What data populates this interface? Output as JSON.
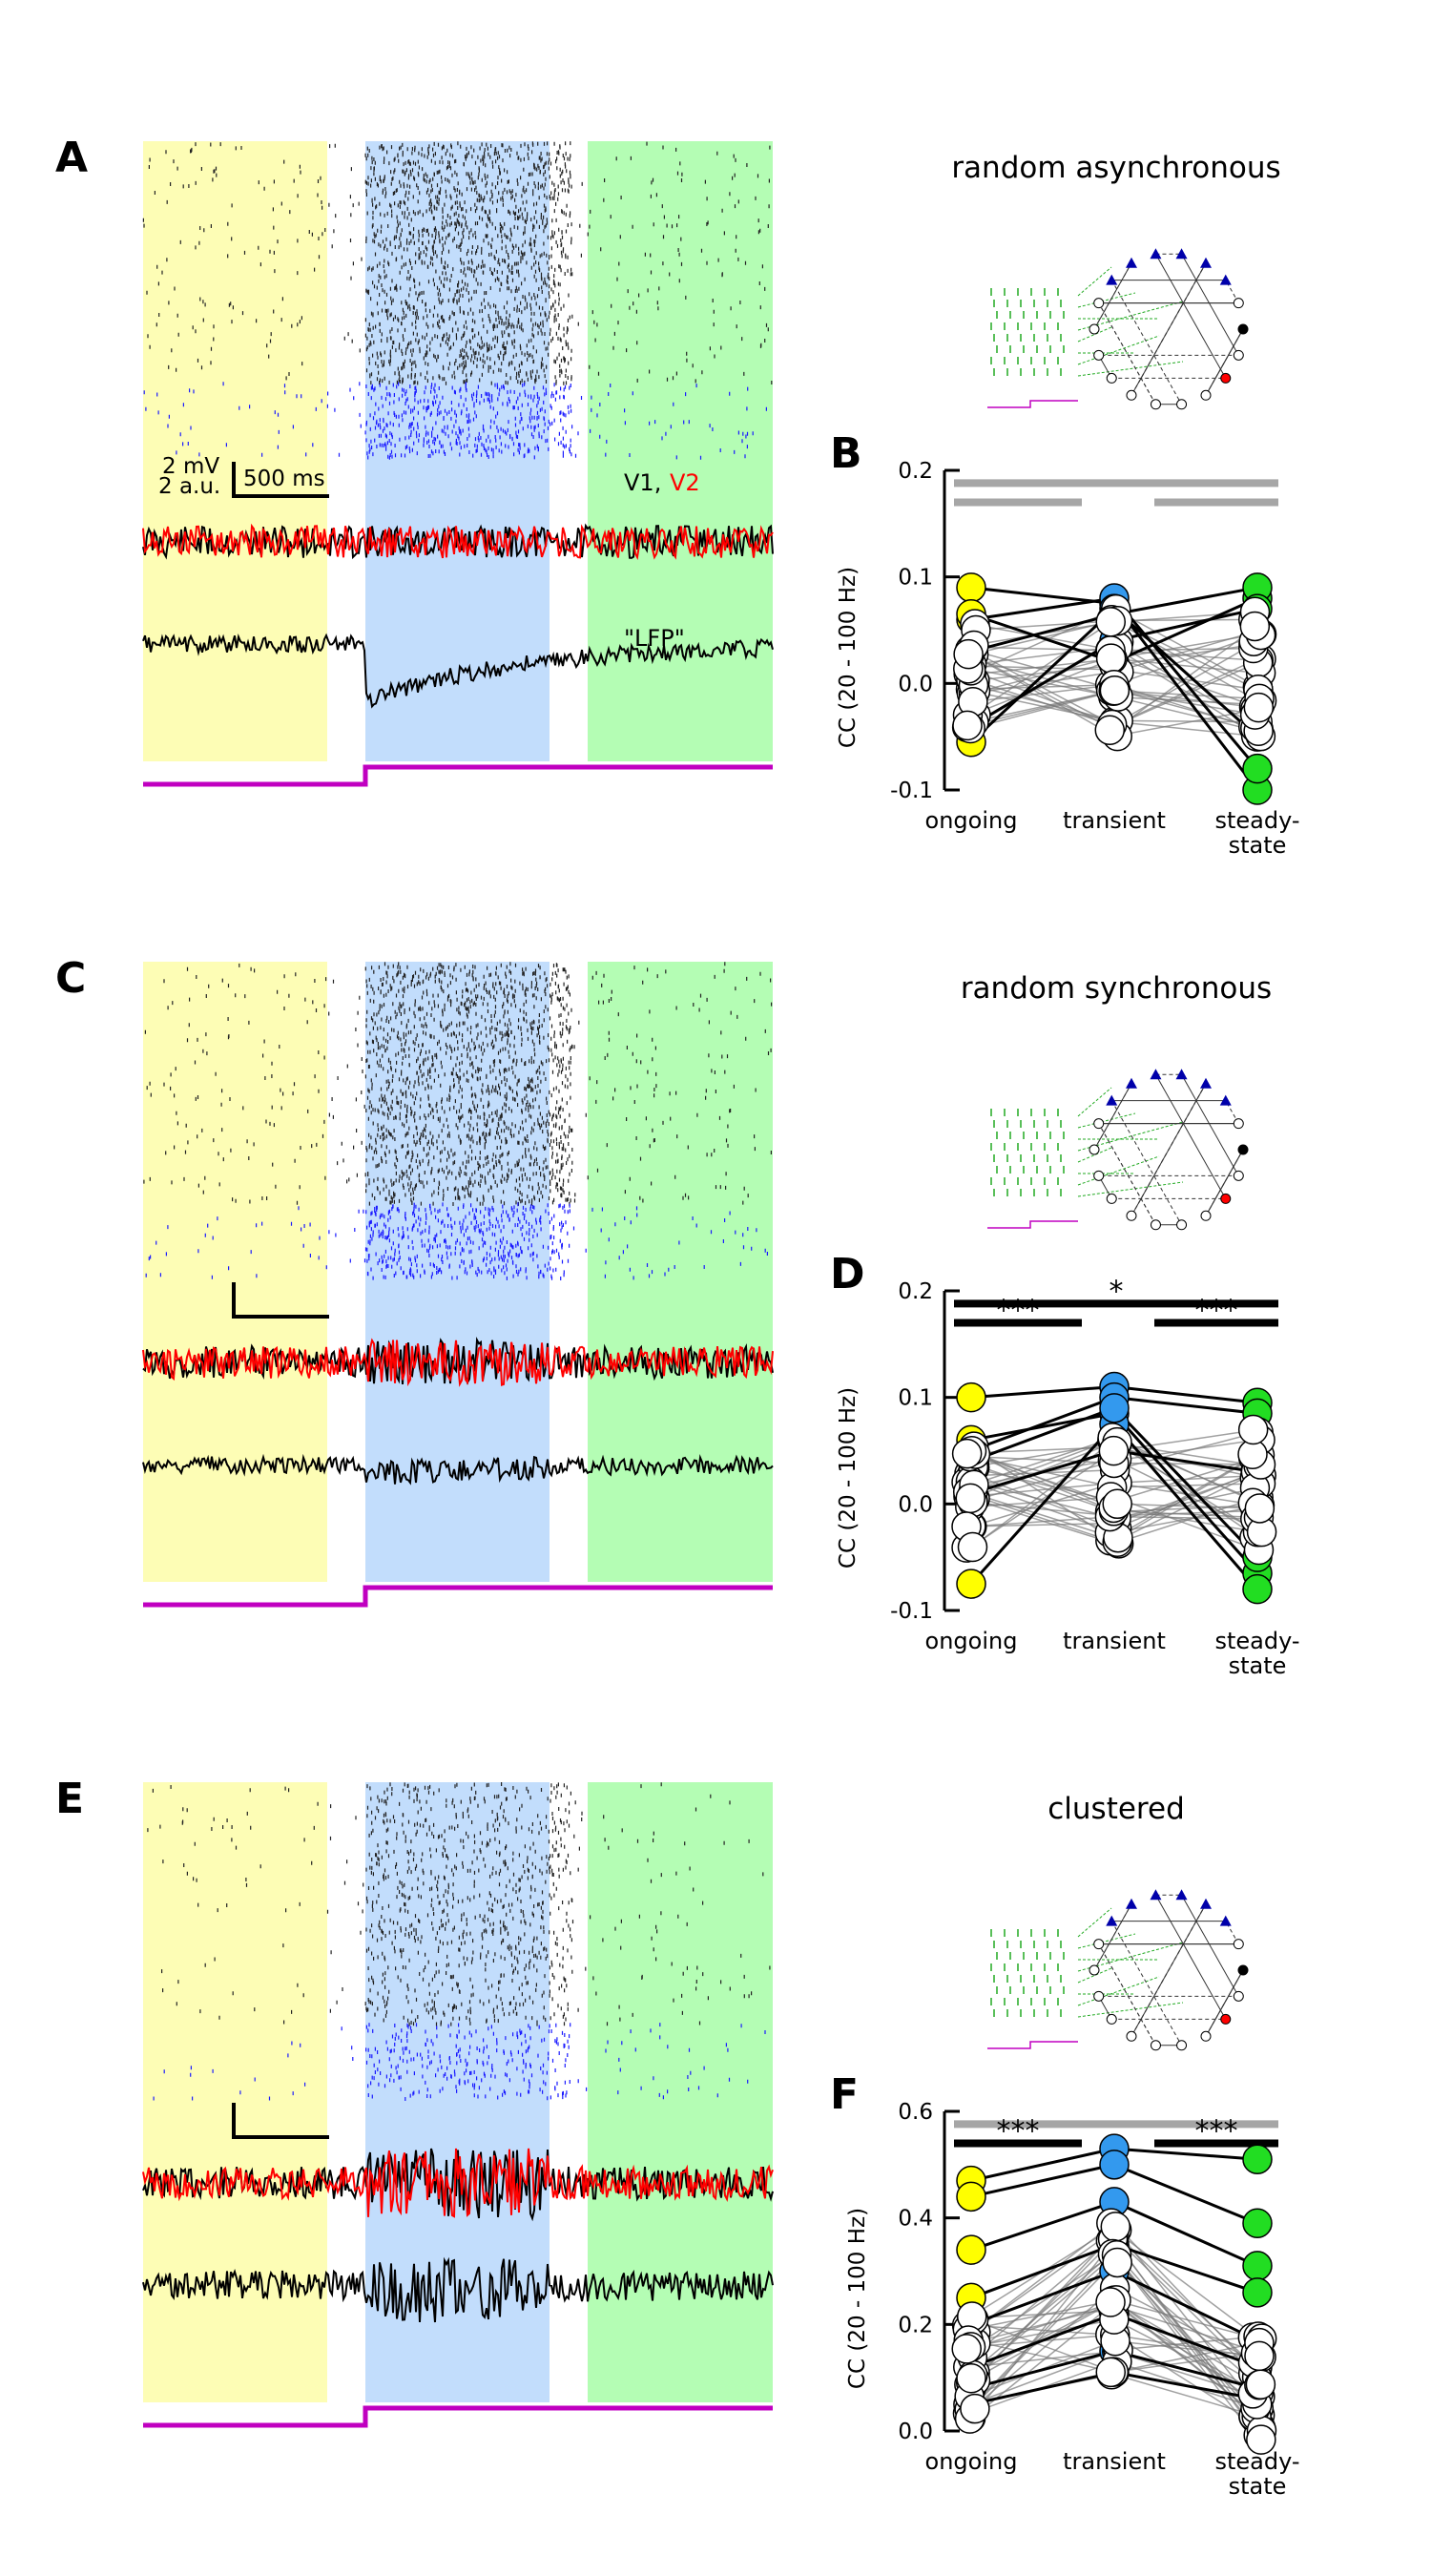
{
  "figure": {
    "common": {
      "scalebar": {
        "mv_label": "2 mV",
        "au_label": "2 a.u.",
        "time_label": "500 ms"
      },
      "trace_legend": {
        "v1_label": "V1,",
        "v2_label": "V2",
        "lfp_label": "\"LFP\""
      },
      "y_axis_label": "CC (20 - 100 Hz)",
      "conditions": [
        "ongoing",
        "transient",
        "steady-",
        "state"
      ],
      "colors": {
        "ongoing": "#ffff00",
        "transient": "#3399ee",
        "steady": "#22dd22",
        "ongoing_bg": "#fdfdb5",
        "transient_bg": "#c2ddfc",
        "steady_bg": "#b4fdb4",
        "stim": "#c000c0",
        "v1": "#000000",
        "v2": "#ff0000",
        "raster_top": "#222222",
        "raster_bottom": "#1a1aff",
        "net_excit": "#0000aa",
        "net_input": "#22aa22",
        "bar_gray": "#a6a6a6"
      }
    },
    "panels": [
      {
        "letter_left": "A",
        "letter_right": "B",
        "title": "random asynchronous",
        "chart_data": {
          "type": "scatter",
          "ylim": [
            -0.1,
            0.2
          ],
          "yticks": [
            "-0.1",
            "0.0",
            "0.1",
            "0.2"
          ],
          "xlabel": "",
          "ylabel": "CC (20 - 100 Hz)",
          "categories": [
            "ongoing",
            "transient",
            "steady-state"
          ],
          "highlighted": [
            {
              "ongoing": 0.09,
              "transient": 0.075,
              "steady": -0.1
            },
            {
              "ongoing": 0.06,
              "transient": 0.08,
              "steady": -0.08
            },
            {
              "ongoing": 0.065,
              "transient": 0.02,
              "steady": 0.08
            },
            {
              "ongoing": -0.055,
              "transient": 0.07,
              "steady": -0.05
            },
            {
              "ongoing": 0.03,
              "transient": 0.065,
              "steady": 0.09
            },
            {
              "ongoing": -0.04,
              "transient": 0.04,
              "steady": 0.07
            }
          ],
          "significance": [
            {
              "from": 0,
              "to": 2,
              "label": "",
              "color": "gray"
            },
            {
              "from": 0,
              "to": 1,
              "label": "",
              "color": "gray"
            },
            {
              "from": 1.5,
              "to": 2,
              "label": "",
              "color": "gray"
            }
          ]
        }
      },
      {
        "letter_left": "C",
        "letter_right": "D",
        "title": "random synchronous",
        "chart_data": {
          "type": "scatter",
          "ylim": [
            -0.1,
            0.2
          ],
          "yticks": [
            "-0.1",
            "0.0",
            "0.1",
            "0.2"
          ],
          "xlabel": "",
          "ylabel": "CC (20 - 100 Hz)",
          "categories": [
            "ongoing",
            "transient",
            "steady-state"
          ],
          "highlighted": [
            {
              "ongoing": 0.1,
              "transient": 0.11,
              "steady": 0.095
            },
            {
              "ongoing": 0.05,
              "transient": 0.1,
              "steady": 0.085
            },
            {
              "ongoing": 0.06,
              "transient": 0.085,
              "steady": -0.065
            },
            {
              "ongoing": -0.075,
              "transient": 0.075,
              "steady": -0.08
            },
            {
              "ongoing": 0.01,
              "transient": 0.05,
              "steady": 0.03
            },
            {
              "ongoing": 0.04,
              "transient": 0.09,
              "steady": -0.05
            }
          ],
          "significance": [
            {
              "from": 0,
              "to": 2,
              "label": "*",
              "color": "black"
            },
            {
              "from": 0,
              "to": 1,
              "label": "***",
              "color": "black"
            },
            {
              "from": 1.5,
              "to": 2,
              "label": "***",
              "color": "black"
            }
          ]
        }
      },
      {
        "letter_left": "E",
        "letter_right": "F",
        "title": "clustered",
        "chart_data": {
          "type": "scatter",
          "ylim": [
            0.0,
            0.6
          ],
          "yticks": [
            "0.0",
            "0.2",
            "0.4",
            "0.6"
          ],
          "xlabel": "",
          "ylabel": "CC (20 - 100 Hz)",
          "categories": [
            "ongoing",
            "transient",
            "steady-state"
          ],
          "highlighted": [
            {
              "ongoing": 0.47,
              "transient": 0.53,
              "steady": 0.51
            },
            {
              "ongoing": 0.44,
              "transient": 0.5,
              "steady": 0.39
            },
            {
              "ongoing": 0.34,
              "transient": 0.43,
              "steady": 0.31
            },
            {
              "ongoing": 0.25,
              "transient": 0.35,
              "steady": 0.26
            },
            {
              "ongoing": 0.2,
              "transient": 0.3,
              "steady": 0.17
            },
            {
              "ongoing": 0.12,
              "transient": 0.22,
              "steady": 0.12
            },
            {
              "ongoing": 0.08,
              "transient": 0.15,
              "steady": 0.08
            },
            {
              "ongoing": 0.05,
              "transient": 0.11,
              "steady": 0.06
            }
          ],
          "significance": [
            {
              "from": 0,
              "to": 2,
              "label": "",
              "color": "gray"
            },
            {
              "from": 0,
              "to": 1,
              "label": "***",
              "color": "black"
            },
            {
              "from": 1.5,
              "to": 2,
              "label": "***",
              "color": "black"
            }
          ]
        }
      }
    ]
  }
}
